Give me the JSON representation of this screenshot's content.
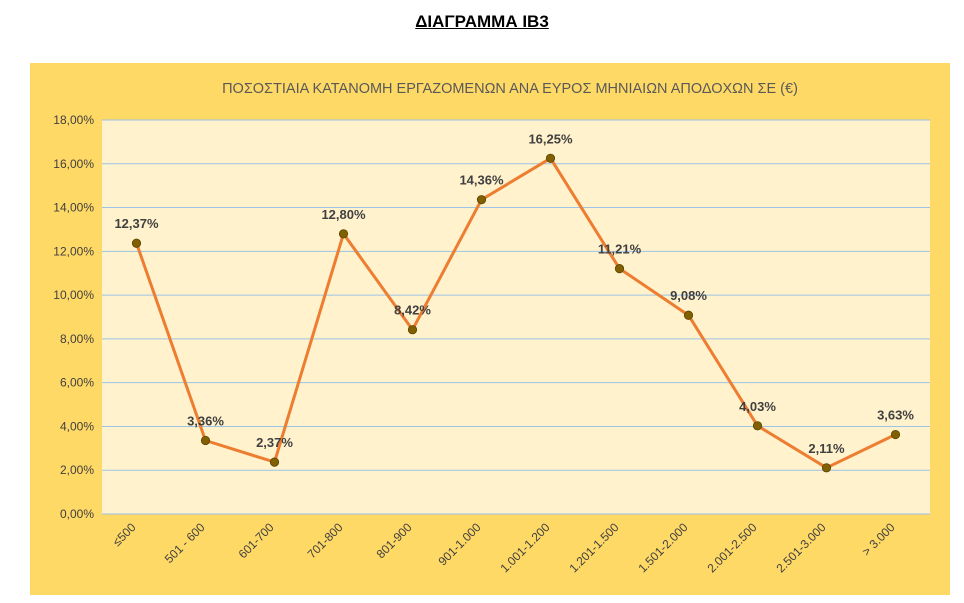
{
  "heading": "ΔΙΑΓΡΑΜΜΑ ΙΒ3",
  "colors": {
    "outer_background": "#ffd966",
    "plot_background": "#fff2cc",
    "gridline": "#9dc3e6",
    "line": "#ed7d31",
    "marker": "#806000"
  },
  "chart_data": {
    "type": "line",
    "title": "ΠΟΣΟΣΤΙΑΙΑ ΚΑΤΑΝΟΜΗ ΕΡΓΑΖΟΜΕΝΩΝ ΑΝΑ ΕΥΡΟΣ ΜΗΝΙΑΙΩΝ ΑΠΟΔΟΧΩΝ ΣΕ (€)",
    "xlabel": "",
    "ylabel": "",
    "categories": [
      "≤500",
      "501 - 600",
      "601-700",
      "701-800",
      "801-900",
      "901-1.000",
      "1.001-1.200",
      "1.201-1.500",
      "1.501-2.000",
      "2.001-2.500",
      "2.501-3.000",
      "> 3.000"
    ],
    "values": [
      12.37,
      3.36,
      2.37,
      12.8,
      8.42,
      14.36,
      16.25,
      11.21,
      9.08,
      4.03,
      2.11,
      3.63
    ],
    "data_labels": [
      "12,37%",
      "3,36%",
      "2,37%",
      "12,80%",
      "8,42%",
      "14,36%",
      "16,25%",
      "11,21%",
      "9,08%",
      "4,03%",
      "2,11%",
      "3,63%"
    ],
    "ylim": [
      0,
      18
    ],
    "yticks": [
      0,
      2,
      4,
      6,
      8,
      10,
      12,
      14,
      16,
      18
    ],
    "ytick_labels": [
      "0,00%",
      "2,00%",
      "4,00%",
      "6,00%",
      "8,00%",
      "10,00%",
      "12,00%",
      "14,00%",
      "16,00%",
      "18,00%"
    ],
    "grid": true,
    "legend": "none"
  }
}
